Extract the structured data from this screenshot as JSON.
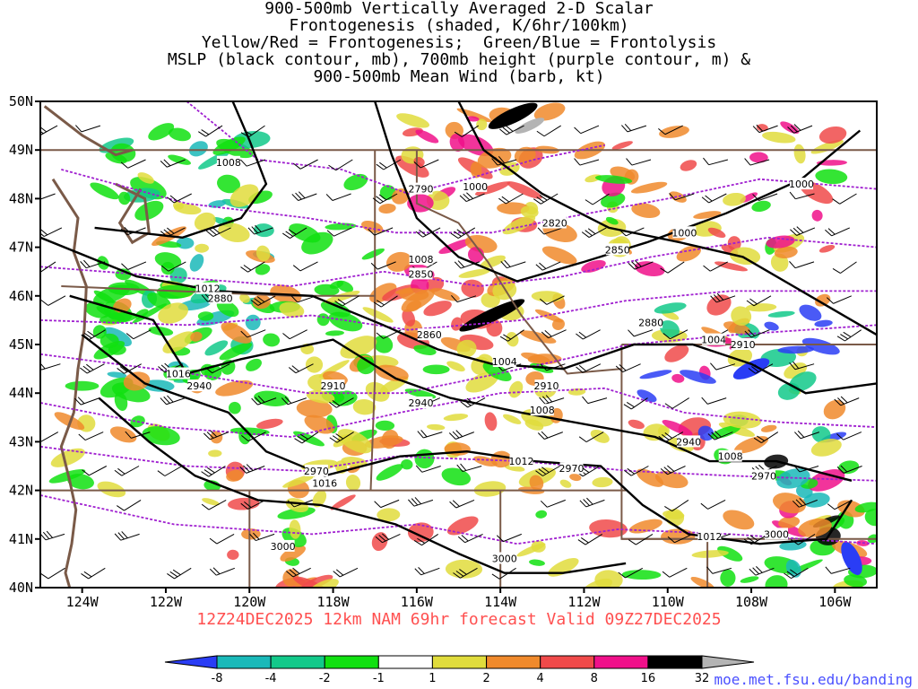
{
  "title_lines": [
    "900-500mb Vertically Averaged 2-D Scalar",
    "Frontogenesis (shaded, K/6hr/100km)",
    "Yellow/Red = Frontogenesis;  Green/Blue = Frontolysis",
    "MSLP (black contour, mb), 700mb height (purple contour, m) &",
    "900-500mb Mean Wind (barb, kt)"
  ],
  "lat_labels": [
    "50N",
    "49N",
    "48N",
    "47N",
    "46N",
    "45N",
    "44N",
    "43N",
    "42N",
    "41N",
    "40N"
  ],
  "lon_labels": [
    "124W",
    "122W",
    "120W",
    "118W",
    "116W",
    "114W",
    "112W",
    "110W",
    "108W",
    "106W"
  ],
  "valid_text": "12Z24DEC2025 12km NAM 69hr forecast Valid 09Z27DEC2025",
  "credit": "moe.met.fsu.edu/banding",
  "colorbar": {
    "ticks": [
      "-8",
      "-4",
      "-2",
      "-1",
      "1",
      "2",
      "4",
      "8",
      "16",
      "32"
    ],
    "colors": [
      "#2a3df5",
      "#1ab9b9",
      "#12c98a",
      "#11e011",
      "#ffffff",
      "#e0dc3c",
      "#f08a2c",
      "#f04a4a",
      "#f0108a",
      "#000000",
      "#b4b4b4"
    ]
  },
  "mslp_labels": [
    {
      "text": "1008",
      "lon": -120.5,
      "lat": 48.75
    },
    {
      "text": "1000",
      "lon": -114.6,
      "lat": 48.25
    },
    {
      "text": "1000",
      "lon": -106.8,
      "lat": 48.3
    },
    {
      "text": "1000",
      "lon": -109.6,
      "lat": 47.3
    },
    {
      "text": "1008",
      "lon": -115.9,
      "lat": 46.75
    },
    {
      "text": "1012",
      "lon": -121.0,
      "lat": 46.15
    },
    {
      "text": "1004",
      "lon": -108.9,
      "lat": 45.1
    },
    {
      "text": "1004",
      "lon": -113.9,
      "lat": 44.65
    },
    {
      "text": "1016",
      "lon": -121.7,
      "lat": 44.4
    },
    {
      "text": "1008",
      "lon": -113.0,
      "lat": 43.65
    },
    {
      "text": "1012",
      "lon": -113.5,
      "lat": 42.6
    },
    {
      "text": "1008",
      "lon": -108.5,
      "lat": 42.7
    },
    {
      "text": "1016",
      "lon": -118.2,
      "lat": 42.15
    },
    {
      "text": "1012",
      "lon": -109.0,
      "lat": 41.05
    }
  ],
  "hgt_labels": [
    {
      "text": "2790",
      "lon": -115.9,
      "lat": 48.2
    },
    {
      "text": "2820",
      "lon": -112.7,
      "lat": 47.5
    },
    {
      "text": "2850",
      "lon": -111.2,
      "lat": 46.95
    },
    {
      "text": "2850",
      "lon": -115.9,
      "lat": 46.45
    },
    {
      "text": "2880",
      "lon": -120.7,
      "lat": 45.95
    },
    {
      "text": "2880",
      "lon": -110.4,
      "lat": 45.45
    },
    {
      "text": "2860",
      "lon": -115.7,
      "lat": 45.2
    },
    {
      "text": "2910",
      "lon": -108.2,
      "lat": 45.0
    },
    {
      "text": "2940",
      "lon": -121.2,
      "lat": 44.15
    },
    {
      "text": "2910",
      "lon": -118.0,
      "lat": 44.15
    },
    {
      "text": "2910",
      "lon": -112.9,
      "lat": 44.15
    },
    {
      "text": "2940",
      "lon": -115.9,
      "lat": 43.8
    },
    {
      "text": "2940",
      "lon": -109.5,
      "lat": 43.0
    },
    {
      "text": "2970",
      "lon": -118.4,
      "lat": 42.4
    },
    {
      "text": "2970",
      "lon": -112.3,
      "lat": 42.45
    },
    {
      "text": "2970",
      "lon": -107.7,
      "lat": 42.3
    },
    {
      "text": "3000",
      "lon": -107.4,
      "lat": 41.1
    },
    {
      "text": "3000",
      "lon": -119.2,
      "lat": 40.85
    },
    {
      "text": "3000",
      "lon": -113.9,
      "lat": 40.6
    }
  ]
}
